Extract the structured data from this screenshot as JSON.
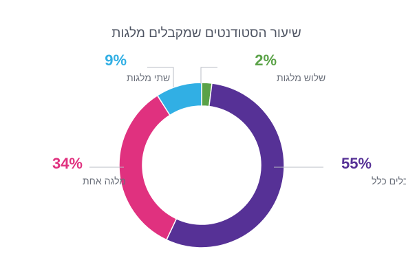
{
  "chart_data": {
    "type": "pie",
    "title": "שיעור הסטודנטים שמקבלים מלגות",
    "donut": true,
    "slices": [
      {
        "label": "אינם מקבלים כלל",
        "value": 55,
        "display": "55%",
        "color": "#563196"
      },
      {
        "label": "מלגה אחת",
        "value": 34,
        "display": "34%",
        "color": "#e0317f"
      },
      {
        "label": "שתי מלגות",
        "value": 9,
        "display": "9%",
        "color": "#31afe4"
      },
      {
        "label": "שלוש מלגות",
        "value": 2,
        "display": "2%",
        "color": "#5aa247"
      }
    ]
  }
}
